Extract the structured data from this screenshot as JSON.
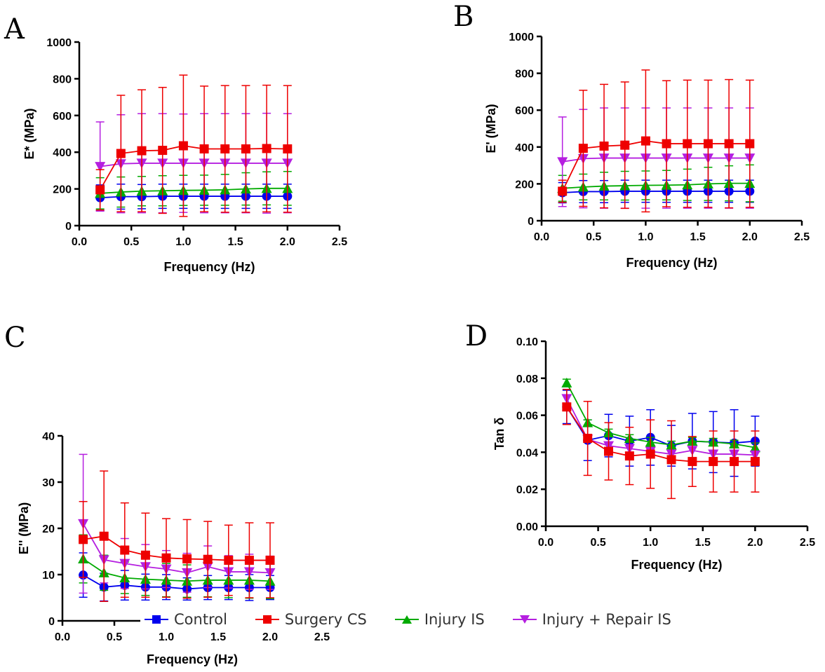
{
  "panels": {
    "A": "A",
    "B": "B",
    "C": "C",
    "D": "D"
  },
  "colors": {
    "control": "#0000ee",
    "surgery": "#ee0000",
    "injury": "#00aa00",
    "repair": "#b51fe0"
  },
  "legend": [
    {
      "key": "control",
      "label": "Control",
      "marker": "square",
      "color": "#0000ee"
    },
    {
      "key": "surgery",
      "label": "Surgery CS",
      "marker": "square",
      "color": "#ee0000"
    },
    {
      "key": "injury",
      "label": "Injury IS",
      "marker": "triangle-up",
      "color": "#00aa00"
    },
    {
      "key": "repair",
      "label": "Injury + Repair IS",
      "marker": "triangle-down",
      "color": "#b51fe0"
    }
  ],
  "chart_data": [
    {
      "panel": "A",
      "type": "line",
      "xlabel": "Frequency (Hz)",
      "ylabel": "E* (MPa)",
      "xlim": [
        0,
        2.5
      ],
      "ylim": [
        0,
        1000
      ],
      "xticks": [
        "0.0",
        "0.5",
        "1.0",
        "1.5",
        "2.0",
        "2.5"
      ],
      "yticks": [
        "0",
        "200",
        "400",
        "600",
        "800",
        "1000"
      ],
      "x": [
        0.2,
        0.4,
        0.6,
        0.8,
        1.0,
        1.2,
        1.4,
        1.6,
        1.8,
        2.0
      ],
      "series": [
        {
          "key": "control",
          "marker": "circle",
          "values": [
            152,
            158,
            158,
            160,
            160,
            160,
            160,
            160,
            160,
            160
          ],
          "err": [
            70,
            68,
            66,
            66,
            66,
            66,
            66,
            66,
            66,
            66
          ]
        },
        {
          "key": "injury",
          "marker": "triangle-up",
          "values": [
            176,
            183,
            188,
            190,
            192,
            193,
            195,
            200,
            203,
            203
          ],
          "err": [
            85,
            82,
            80,
            82,
            82,
            82,
            84,
            88,
            90,
            92
          ]
        },
        {
          "key": "repair",
          "marker": "triangle-down",
          "values": [
            322,
            337,
            340,
            340,
            340,
            340,
            340,
            340,
            340,
            340
          ],
          "err": [
            243,
            267,
            270,
            270,
            268,
            270,
            270,
            270,
            272,
            270
          ]
        },
        {
          "key": "surgery",
          "marker": "square",
          "values": [
            195,
            393,
            408,
            410,
            435,
            418,
            418,
            418,
            420,
            418
          ],
          "err": [
            110,
            317,
            332,
            343,
            385,
            342,
            345,
            345,
            345,
            345
          ]
        }
      ]
    },
    {
      "panel": "B",
      "type": "line",
      "xlabel": "Frequency (Hz)",
      "ylabel": "E' (MPa)",
      "xlim": [
        0,
        2.5
      ],
      "ylim": [
        0,
        1000
      ],
      "xticks": [
        "0.0",
        "0.5",
        "1.0",
        "1.5",
        "2.0",
        "2.5"
      ],
      "yticks": [
        "0",
        "200",
        "400",
        "600",
        "800",
        "1000"
      ],
      "x": [
        0.2,
        0.4,
        0.6,
        0.8,
        1.0,
        1.2,
        1.4,
        1.6,
        1.8,
        2.0
      ],
      "series": [
        {
          "key": "control",
          "marker": "circle",
          "values": [
            152,
            158,
            158,
            160,
            160,
            160,
            160,
            160,
            160,
            160
          ],
          "err": [
            55,
            60,
            60,
            60,
            60,
            60,
            60,
            60,
            60,
            60
          ]
        },
        {
          "key": "injury",
          "marker": "triangle-up",
          "values": [
            176,
            183,
            188,
            190,
            192,
            193,
            195,
            200,
            203,
            203
          ],
          "err": [
            70,
            70,
            75,
            78,
            78,
            80,
            85,
            90,
            95,
            100
          ]
        },
        {
          "key": "repair",
          "marker": "triangle-down",
          "values": [
            320,
            337,
            340,
            340,
            340,
            340,
            340,
            340,
            340,
            340
          ],
          "err": [
            243,
            267,
            272,
            272,
            272,
            272,
            272,
            272,
            272,
            272
          ]
        },
        {
          "key": "surgery",
          "marker": "square",
          "values": [
            160,
            393,
            405,
            410,
            433,
            418,
            418,
            418,
            418,
            418
          ],
          "err": [
            60,
            315,
            335,
            343,
            385,
            342,
            345,
            345,
            348,
            345
          ]
        }
      ]
    },
    {
      "panel": "C",
      "type": "line",
      "xlabel": "Frequency (Hz)",
      "ylabel": "E'' (MPa)",
      "xlim": [
        0,
        2.5
      ],
      "ylim": [
        0,
        40
      ],
      "xticks": [
        "0.0",
        "0.5",
        "1.0",
        "1.5",
        "2.0",
        "2.5"
      ],
      "yticks": [
        "0",
        "10",
        "20",
        "30",
        "40"
      ],
      "x": [
        0.2,
        0.4,
        0.6,
        0.8,
        1.0,
        1.2,
        1.4,
        1.6,
        1.8,
        2.0
      ],
      "series": [
        {
          "key": "control",
          "marker": "circle",
          "values": [
            9.9,
            7.3,
            7.7,
            7.3,
            7.3,
            6.9,
            7.2,
            7.2,
            7.2,
            7.2
          ],
          "err": [
            4.8,
            3.0,
            3.2,
            2.8,
            2.7,
            2.4,
            2.6,
            2.6,
            2.8,
            2.6
          ]
        },
        {
          "key": "injury",
          "marker": "triangle-up",
          "values": [
            13.4,
            10.4,
            9.3,
            9.0,
            8.8,
            8.6,
            8.8,
            8.8,
            8.8,
            8.6
          ],
          "err": [
            5.2,
            3.8,
            3.4,
            3.5,
            3.6,
            3.5,
            3.6,
            3.8,
            3.9,
            3.8
          ]
        },
        {
          "key": "repair",
          "marker": "triangle-down",
          "values": [
            21.0,
            13.2,
            12.4,
            11.7,
            11.2,
            10.4,
            11.7,
            10.6,
            10.6,
            10.4
          ],
          "err": [
            15.0,
            5.0,
            5.4,
            4.8,
            4.0,
            4.2,
            4.5,
            3.5,
            3.8,
            3.6
          ]
        },
        {
          "key": "surgery",
          "marker": "square",
          "values": [
            17.6,
            18.3,
            15.3,
            14.2,
            13.6,
            13.4,
            13.3,
            13.1,
            13.1,
            13.1
          ],
          "err": [
            8.2,
            14.1,
            10.2,
            9.1,
            8.5,
            8.5,
            8.2,
            7.6,
            8.1,
            8.1
          ]
        }
      ]
    },
    {
      "panel": "D",
      "type": "line",
      "xlabel": "Frequency (Hz)",
      "ylabel": "Tan δ",
      "xlim": [
        0,
        2.5
      ],
      "ylim": [
        0,
        0.1
      ],
      "xticks": [
        "0.0",
        "0.5",
        "1.0",
        "1.5",
        "2.0",
        "2.5"
      ],
      "yticks": [
        "0.00",
        "0.02",
        "0.04",
        "0.06",
        "0.08",
        "0.10"
      ],
      "x": [
        0.2,
        0.4,
        0.6,
        0.8,
        1.0,
        1.2,
        1.4,
        1.6,
        1.8,
        2.0
      ],
      "series": [
        {
          "key": "control",
          "marker": "circle",
          "values": [
            0.0645,
            0.0465,
            0.049,
            0.046,
            0.048,
            0.0435,
            0.046,
            0.0455,
            0.045,
            0.046
          ],
          "err": [
            0.009,
            0.011,
            0.0115,
            0.0135,
            0.015,
            0.011,
            0.015,
            0.0165,
            0.018,
            0.0135
          ]
        },
        {
          "key": "injury",
          "marker": "triangle-up",
          "values": [
            0.0775,
            0.056,
            0.0505,
            0.0475,
            0.0455,
            0.044,
            0.046,
            0.0455,
            0.0445,
            0.0425
          ],
          "err": [
            0.002,
            0.0015,
            0.002,
            0.002,
            0.0025,
            0.002,
            0.002,
            0.002,
            0.002,
            0.0025
          ]
        },
        {
          "key": "repair",
          "marker": "triangle-down",
          "values": [
            0.069,
            0.047,
            0.0435,
            0.042,
            0.0405,
            0.039,
            0.041,
            0.039,
            0.039,
            0.0385
          ]
        },
        {
          "key": "surgery",
          "marker": "square",
          "values": [
            0.0645,
            0.0475,
            0.0405,
            0.038,
            0.039,
            0.036,
            0.035,
            0.035,
            0.035,
            0.035
          ],
          "err": [
            0.0095,
            0.02,
            0.0155,
            0.0155,
            0.0185,
            0.021,
            0.0135,
            0.0165,
            0.0165,
            0.0165
          ]
        }
      ]
    }
  ]
}
